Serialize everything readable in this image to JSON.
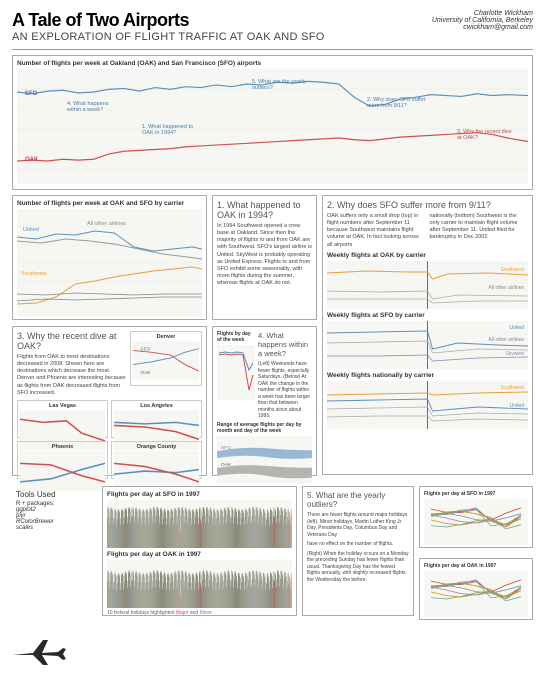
{
  "header": {
    "title": "A Tale of Two Airports",
    "subtitle": "AN EXPLORATION OF FLIGHT TRAFFIC AT OAK AND SFO",
    "author_name": "Charlotte Wickham",
    "author_affil": "University of California, Berkeley",
    "author_email": "cwickham@gmail.com"
  },
  "main_chart": {
    "title": "Number of flights per week at Oakland (OAK) and San Francisco (SFO) airports",
    "sfo_label": "SFO",
    "oak_label": "OAK",
    "sfo_color": "#5b8fbf",
    "oak_color": "#d05050",
    "bg": "#f6f6f2",
    "grid_color": "#e8e8e4",
    "xlim": [
      88,
      19
    ],
    "ylim": [
      0,
      6000
    ],
    "sfo_series": {
      "x": [
        0,
        3,
        6,
        9,
        12,
        15,
        18,
        21,
        24,
        27,
        30,
        33,
        36,
        39,
        42,
        45,
        48,
        51,
        54,
        57,
        60,
        63,
        66,
        69,
        72,
        75,
        78,
        81,
        84,
        87,
        90,
        93,
        96,
        100
      ],
      "y": [
        5200,
        5100,
        5250,
        5300,
        5150,
        5200,
        5350,
        5400,
        5250,
        5450,
        5350,
        5500,
        5450,
        5600,
        5500,
        5650,
        5600,
        5750,
        5700,
        5800,
        5750,
        5650,
        4900,
        4400,
        4500,
        4800,
        4900,
        5050,
        5000,
        4950,
        5100,
        5000,
        5050,
        5000
      ]
    },
    "oak_series": {
      "x": [
        0,
        3,
        6,
        9,
        12,
        15,
        18,
        21,
        24,
        27,
        30,
        33,
        36,
        39,
        42,
        45,
        48,
        51,
        54,
        57,
        60,
        63,
        66,
        69,
        72,
        75,
        78,
        81,
        84,
        87,
        90,
        93,
        96,
        100
      ],
      "y": [
        1300,
        1350,
        1300,
        1400,
        1350,
        1400,
        1700,
        1850,
        1900,
        1950,
        2000,
        2100,
        2150,
        2200,
        2250,
        2300,
        2350,
        2400,
        2450,
        2500,
        2550,
        2600,
        2500,
        2450,
        2550,
        2650,
        2700,
        2750,
        2800,
        2850,
        2900,
        2800,
        2600,
        2400
      ]
    },
    "annotations": {
      "q1": "1. What happened to OAK in 1994?",
      "q2": "2. Why does SFO suffer more from 9/11?",
      "q3": "3. Why the recent dive at OAK?",
      "q4": "4. What happens within a week?",
      "q5": "5. What are the yearly outliers?"
    }
  },
  "carrier_chart": {
    "title": "Number of flights per week at OAK and SFO by carrier",
    "carriers": {
      "united": {
        "label": "United",
        "color": "#5b8fbf"
      },
      "southwest": {
        "label": "Southwest",
        "color": "#e8a03c"
      },
      "other": {
        "label": "All other airlines",
        "color": "#999999"
      }
    },
    "bg": "#f6f6f2",
    "ylim": [
      0,
      3000
    ]
  },
  "q1": {
    "title": "1. What happened to OAK in 1994?",
    "text": "In 1994 Southwest opened a crew base at Oakland. Since then the majority of flights to and from OAK are with Southwest. SFO's largest airline is United. SkyWest is probably operating as United Express. Flights to and from SFO exhibit some seasonality, with more flights during the summer, whereas flights at OAK do not."
  },
  "q2": {
    "title": "2. Why does SFO suffer more from 9/11?",
    "text_left": "OAK suffers only a small drop (top) in flight numbers after September 11 because Southwest maintains flight volume at OAK. In fact looking across all airports",
    "text_right": "nationally (bottom) Southwest is the only carrier to maintain flight volume after September 11. United filed for bankruptcy in Dec 2002.",
    "sub1_title": "Weekly flights at OAK by carrier",
    "sub2_title": "Weekly flights at SFO by carrier",
    "sub3_title": "Weekly flights nationally by carrier",
    "carrier_colors": {
      "southwest": "#e8a03c",
      "united": "#5b8fbf",
      "other": "#aaaaaa",
      "skywest": "#9c7fb8"
    },
    "other_label": "All other airlines",
    "united_label": "United",
    "southwest_label": "Southwest",
    "skywest_label": "Skywest"
  },
  "q3": {
    "title": "3. Why the recent dive at OAK?",
    "text": "Flights from OAK to most destinations decreased in 2008. Shown here are destinations which decrease the most. Denver and Phoenix are interesting because as flights from OAK decreased flights from SFO increased.",
    "cities": [
      "Denver",
      "Las Vegas",
      "Los Angeles",
      "Phoenix",
      "Orange County"
    ],
    "sfo_color": "#5b8fbf",
    "oak_color": "#d05050",
    "sfo_label": "SFO",
    "oak_label": "OAK",
    "y_axis_label": "Change in weekly flights"
  },
  "q4": {
    "title": "4. What happens within a week?",
    "text": "(Left) Weekends have fewer flights, especially Saturdays. (Below) At OAK the change in the number of flights within a week has been larger than that between months since about 1995.",
    "sub1_title": "Flights by day of the week",
    "sub2_title": "Range of average flights per day by month and day of the week",
    "sfo_label": "SFO",
    "oak_label": "OAK",
    "sfo_color": "#5b8fbf",
    "oak_color": "#d05050"
  },
  "q5": {
    "title": "5. What are the yearly outliers?",
    "text_top": "There are fewer flights around major holidays (left). Minor holidays, Martin Luther King Jr. Day, Presidents Day, Columbus Day and Veterans Day",
    "text_mid": "have no effect on the number of flights.",
    "text_bottom": "(Right) When the holiday occurs on a Monday the preceding Sunday has fewer flights than usual. Thanksgiving Day has the fewest flights annually, with slightly increased flights the Wednesday the before.",
    "sub1_title": "Flights per day at SFO in 1997",
    "sub2_title": "Flights per day at OAK in 1997",
    "sub3_title": "Flights per day at SFO in 1997",
    "sub4_title": "Flights per day at OAK in 1997",
    "holidays_note": "10 federal holidays highlighted",
    "major_label": "Major",
    "minor_label": "Minor",
    "major_color": "#d05050",
    "minor_color": "#5b8fbf"
  },
  "tools": {
    "title": "Tools Used",
    "items": [
      "R + packages:",
      "ggplot2",
      "plyr",
      "RColorBrewer",
      "scales"
    ]
  }
}
